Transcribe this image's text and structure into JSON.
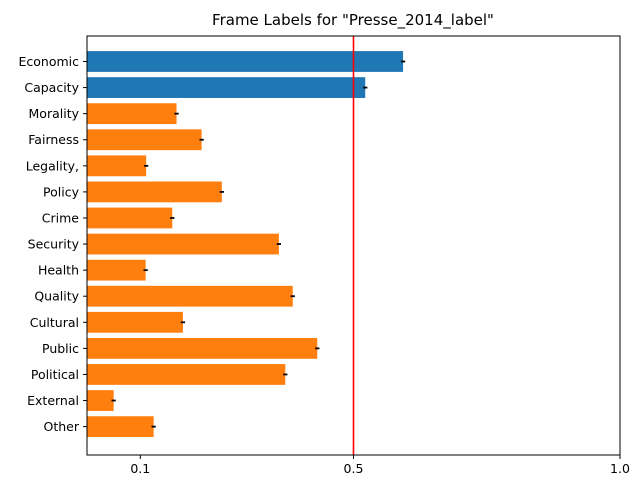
{
  "chart_data": {
    "type": "bar",
    "orientation": "horizontal",
    "title": "Frame Labels for \"Presse_2014_label\"",
    "xlabel": "",
    "ylabel": "",
    "xlim": [
      0.0,
      1.0
    ],
    "xticks": [
      {
        "value": 0.1,
        "label": "0.1"
      },
      {
        "value": 0.5,
        "label": "0.5"
      },
      {
        "value": 1.0,
        "label": "1.0"
      }
    ],
    "categories": [
      "Economic",
      "Capacity",
      "Morality",
      "Fairness",
      "Legality,",
      "Policy",
      "Crime",
      "Security",
      "Health",
      "Quality",
      "Cultural",
      "Public",
      "Political",
      "External",
      "Other"
    ],
    "values": [
      0.593,
      0.522,
      0.168,
      0.215,
      0.111,
      0.253,
      0.16,
      0.36,
      0.11,
      0.386,
      0.18,
      0.432,
      0.372,
      0.05,
      0.125
    ],
    "errors": [
      0.004,
      0.004,
      0.004,
      0.004,
      0.004,
      0.004,
      0.004,
      0.004,
      0.004,
      0.004,
      0.004,
      0.004,
      0.004,
      0.004,
      0.004
    ],
    "bar_colors": [
      "#1f77b4",
      "#1f77b4",
      "#ff7f0e",
      "#ff7f0e",
      "#ff7f0e",
      "#ff7f0e",
      "#ff7f0e",
      "#ff7f0e",
      "#ff7f0e",
      "#ff7f0e",
      "#ff7f0e",
      "#ff7f0e",
      "#ff7f0e",
      "#ff7f0e",
      "#ff7f0e"
    ],
    "reference_line": {
      "value": 0.5,
      "color": "#ff0000"
    },
    "grid": false,
    "legend": "none"
  }
}
